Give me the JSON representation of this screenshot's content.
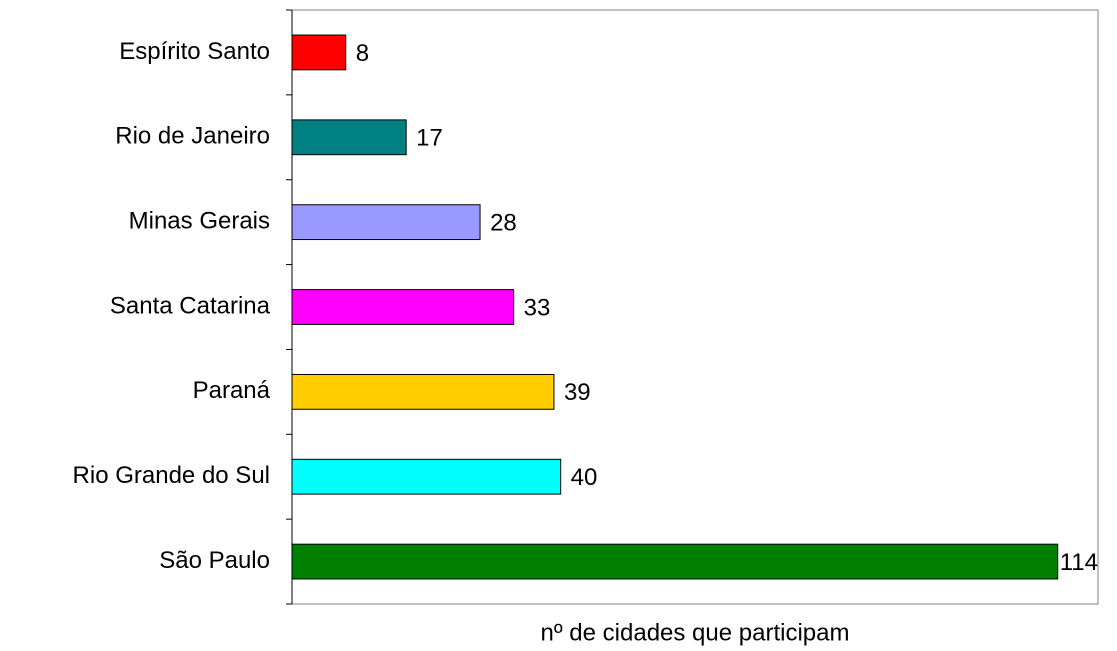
{
  "chart_data": {
    "type": "bar",
    "orientation": "horizontal",
    "x_label": "nº de cidades que participam",
    "categories": [
      "Espírito Santo",
      "Rio de Janeiro",
      "Minas Gerais",
      "Santa Catarina",
      "Paraná",
      "Rio Grande do Sul",
      "São Paulo"
    ],
    "values": [
      8,
      17,
      28,
      33,
      39,
      40,
      114
    ],
    "colors": [
      "#ff0000",
      "#008080",
      "#9999ff",
      "#ff00ff",
      "#ffcc00",
      "#00ffff",
      "#008000"
    ],
    "xlim": [
      0,
      120
    ]
  }
}
